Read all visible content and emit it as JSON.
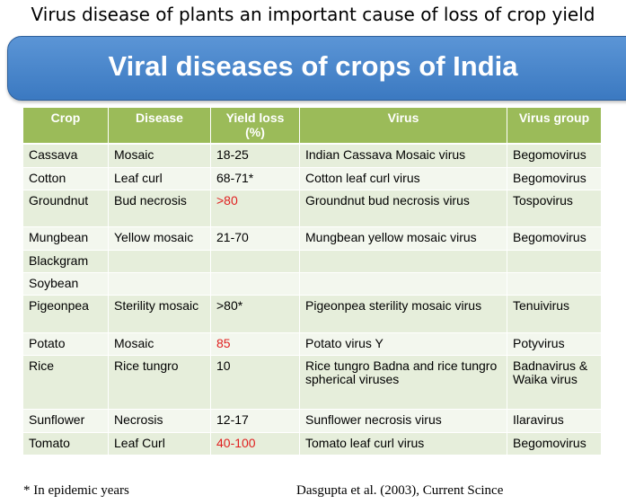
{
  "page_title": "Virus disease of plants an important cause of loss of crop yield",
  "banner": {
    "title": "Viral diseases of crops of India",
    "color": "#4a86cc"
  },
  "table": {
    "header_color": "#9bbb59",
    "highlight_color": "#e02020",
    "columns": [
      "Crop",
      "Disease",
      "Yield loss (%)",
      "Virus",
      "Virus group"
    ],
    "rows": [
      {
        "crop": "Cassava",
        "disease": "Mosaic",
        "yield_loss": "18-25",
        "yield_red": false,
        "virus": "Indian Cassava Mosaic virus",
        "group": "Begomovirus"
      },
      {
        "crop": "Cotton",
        "disease": "Leaf curl",
        "yield_loss": "68-71*",
        "yield_red": false,
        "virus": "Cotton leaf curl virus",
        "group": "Begomovirus"
      },
      {
        "crop": "Groundnut",
        "disease": "Bud necrosis",
        "yield_loss": ">80",
        "yield_red": true,
        "virus": "Groundnut bud necrosis virus",
        "group": "Tospovirus"
      },
      {
        "crop": "Mungbean",
        "disease": "Yellow mosaic",
        "yield_loss": "21-70",
        "yield_red": false,
        "virus": "Mungbean yellow mosaic virus",
        "group": "Begomovirus"
      },
      {
        "crop": "Blackgram",
        "disease": "",
        "yield_loss": "",
        "yield_red": false,
        "virus": "",
        "group": ""
      },
      {
        "crop": "Soybean",
        "disease": "",
        "yield_loss": "",
        "yield_red": false,
        "virus": "",
        "group": ""
      },
      {
        "crop": "Pigeonpea",
        "disease": "Sterility mosaic",
        "yield_loss": ">80*",
        "yield_red": false,
        "virus": "Pigeonpea sterility mosaic virus",
        "group": "Tenuivirus"
      },
      {
        "crop": "Potato",
        "disease": "Mosaic",
        "yield_loss": "85",
        "yield_red": true,
        "virus": "Potato virus Y",
        "group": "Potyvirus"
      },
      {
        "crop": "Rice",
        "disease": "Rice tungro",
        "yield_loss": "10",
        "yield_red": false,
        "virus": "Rice tungro Badna and rice tungro spherical viruses",
        "group": "Badnavirus & Waika virus"
      },
      {
        "crop": "Sunflower",
        "disease": "Necrosis",
        "yield_loss": "12-17",
        "yield_red": false,
        "virus": "Sunflower necrosis virus",
        "group": "Ilaravirus"
      },
      {
        "crop": "Tomato",
        "disease": "Leaf Curl",
        "yield_loss": "40-100",
        "yield_red": true,
        "virus": "Tomato leaf curl virus",
        "group": "Begomovirus"
      }
    ]
  },
  "footnote": "* In epidemic years",
  "reference": "Dasgupta et al. (2003), Current Scince"
}
